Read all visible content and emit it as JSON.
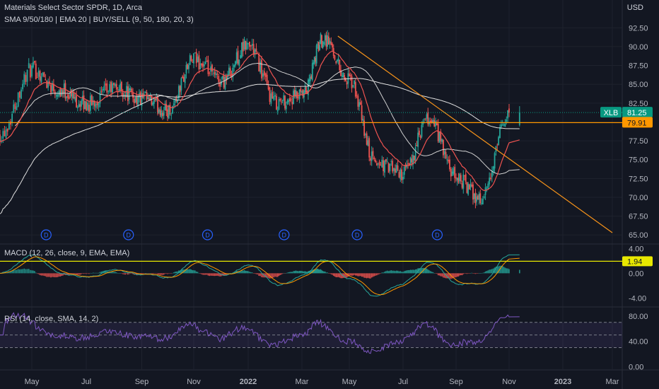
{
  "header": {
    "title": "Materials Select Sector SPDR, 1D, Arca",
    "indicators": "SMA 9/50/180 | EMA 20 | BUY/SELL (9, 50, 180, 20, 3)",
    "currency": "USD"
  },
  "panes": {
    "macd_label": "MACD (12, 26, close, 9, EMA, EMA)",
    "rsi_label": "RSI (14, close, SMA, 14, 2)"
  },
  "colors": {
    "background": "#131722",
    "up": "#26a69a",
    "down": "#ef5350",
    "grid": "#1e222d",
    "trendline": "#f7931a",
    "horizontal_level": "#ff9800",
    "macd_level": "#e8e800",
    "macd_line": "#26a69a",
    "signal_line": "#ff9800",
    "rsi_line": "#7e57c2",
    "last_price": "#089981",
    "sma_long": "#c0c0c0",
    "ema": "#ef5350"
  },
  "chart_data": [
    {
      "type": "candlestick",
      "x_ticks": [
        "May",
        "Jul",
        "Sep",
        "Nov",
        "2022",
        "Mar",
        "May",
        "Jul",
        "Sep",
        "Nov",
        "2023",
        "Mar"
      ],
      "y_ticks": [
        "92.50",
        "90.00",
        "87.50",
        "85.00",
        "82.50",
        "77.50",
        "75.00",
        "72.50",
        "70.00",
        "67.50",
        "65.00"
      ],
      "ylim": [
        63.8,
        94.5
      ],
      "last_price": {
        "label": "XLB",
        "value": "81.25"
      },
      "horizontal_level": {
        "value": "79.91"
      },
      "trendline": {
        "start": {
          "date": "Apr 2022",
          "value": 91.4
        },
        "end": {
          "date": "Mar 2023",
          "value": 65.3
        }
      },
      "dividend_markers": [
        "D",
        "D",
        "D",
        "D",
        "D",
        "D"
      ],
      "price_path": {
        "dates": [
          "Apr 2021",
          "May 2021",
          "Jun 2021",
          "Jul 2021",
          "Aug 2021",
          "Sep 2021",
          "Oct 2021",
          "Nov 2021",
          "Dec 2021",
          "Jan 2022",
          "Feb 2022",
          "Mar 2022",
          "Apr 2022",
          "May 2022",
          "Jun 2022",
          "Jul 2022",
          "Aug 2022",
          "Sep 2022",
          "Oct 2022",
          "Nov 2022"
        ],
        "close": [
          78.5,
          86.9,
          84.2,
          82.3,
          84.5,
          83.0,
          81.5,
          88.2,
          85.5,
          90.2,
          82.6,
          83.3,
          91.2,
          85.4,
          74.6,
          73.2,
          80.3,
          72.6,
          69.8,
          81.2
        ]
      }
    },
    {
      "type": "macd",
      "y_ticks": [
        "4.00",
        "0.00",
        "-4.00"
      ],
      "ylim": [
        -5.2,
        4.6
      ],
      "level": {
        "value": "1.94"
      }
    },
    {
      "type": "rsi",
      "y_ticks": [
        "80.00",
        "40.00",
        "0.00"
      ],
      "ylim": [
        -4,
        92
      ],
      "band": [
        30,
        70
      ]
    }
  ]
}
